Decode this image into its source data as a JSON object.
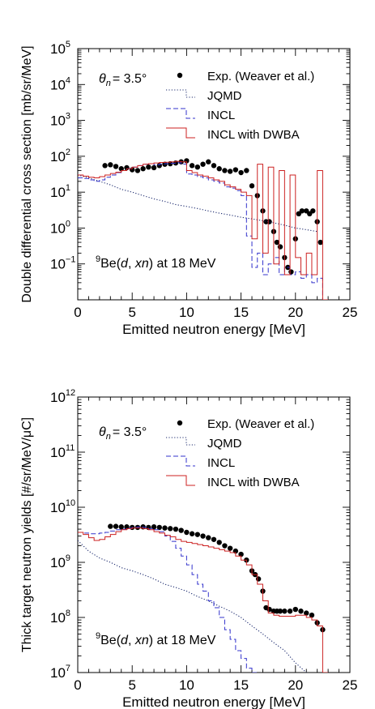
{
  "chart_data": [
    {
      "type": "line",
      "xlabel": "Emitted neutron energy [MeV]",
      "ylabel": "Double differential cross section [mb/sr/MeV]",
      "xlim": [
        0,
        25
      ],
      "ylim": [
        0.01,
        100000
      ],
      "yscale": "log",
      "xticks": [
        "0",
        "5",
        "10",
        "15",
        "20",
        "25"
      ],
      "yticks": [
        {
          "base": "10",
          "exp": "−1"
        },
        {
          "base": "10",
          "exp": "0"
        },
        {
          "base": "10",
          "exp": "1"
        },
        {
          "base": "10",
          "exp": "2"
        },
        {
          "base": "10",
          "exp": "3"
        },
        {
          "base": "10",
          "exp": "4"
        },
        {
          "base": "10",
          "exp": "5"
        }
      ],
      "angle_label": {
        "symbol": "θ",
        "sub": "n",
        "rest": "= 3.5°"
      },
      "reaction_label": {
        "sup": "9",
        "a": "Be(",
        "d": "d",
        "comma": ", ",
        "xn": "xn",
        "rest": ") at 18 MeV"
      },
      "legend_position": "top-right",
      "series": [
        {
          "name": "Exp. (Weaver et al.)",
          "style": "points",
          "color": "#000000",
          "x": [
            2.5,
            3.0,
            3.5,
            4.0,
            4.5,
            5.0,
            5.5,
            6.0,
            6.5,
            7.0,
            7.5,
            8.0,
            8.5,
            9.0,
            9.5,
            10.0,
            10.5,
            11.0,
            11.5,
            12.0,
            12.5,
            13.0,
            13.5,
            14.0,
            14.5,
            15.0,
            15.5,
            16.0,
            16.5,
            17.0,
            17.3,
            17.6,
            18.0,
            18.3,
            18.6,
            19.0,
            19.3,
            19.6,
            20.0,
            20.3,
            20.6,
            21.0,
            21.3,
            21.6,
            22.0,
            22.3
          ],
          "y": [
            55,
            58,
            52,
            45,
            48,
            42,
            40,
            45,
            50,
            48,
            55,
            60,
            62,
            65,
            70,
            75,
            55,
            50,
            60,
            70,
            55,
            45,
            40,
            38,
            42,
            35,
            40,
            15,
            8,
            3,
            1.5,
            1.5,
            0.8,
            0.4,
            0.3,
            0.15,
            0.08,
            0.06,
            0.5,
            2.5,
            3,
            3,
            2.5,
            3,
            1.5,
            0.4
          ]
        },
        {
          "name": "JQMD",
          "style": "dotted",
          "color": "#1c2a6e",
          "x": [
            0,
            1,
            2,
            3,
            4,
            5,
            6,
            7,
            8,
            9,
            10,
            11,
            12,
            13,
            14,
            15,
            16,
            17,
            18,
            19,
            20,
            21,
            22
          ],
          "y": [
            30,
            25,
            20,
            16,
            12,
            10,
            8,
            6.5,
            5.5,
            4.5,
            4,
            3.5,
            3,
            2.6,
            2.3,
            2,
            1.8,
            1.6,
            1.4,
            1.2,
            1.0,
            0.9,
            0.8
          ]
        },
        {
          "name": "INCL",
          "style": "dashed-step",
          "color": "#3333cc",
          "x": [
            0,
            0.5,
            1,
            1.5,
            2,
            2.5,
            3,
            3.5,
            4,
            4.5,
            5,
            5.5,
            6,
            6.5,
            7,
            7.5,
            8,
            8.5,
            9,
            9.5,
            10,
            10.5,
            11,
            11.5,
            12,
            12.5,
            13,
            13.5,
            14,
            14.5,
            15,
            15.5,
            16,
            16.5,
            17,
            17.5,
            18,
            18.5,
            19,
            19.5,
            20,
            20.5,
            21,
            21.5,
            22,
            22.5
          ],
          "y": [
            25,
            24,
            22,
            20,
            22,
            26,
            30,
            35,
            40,
            45,
            50,
            55,
            60,
            62,
            58,
            60,
            62,
            64,
            66,
            60,
            32,
            30,
            27,
            25,
            22,
            20,
            18,
            14,
            13,
            11,
            8,
            0.6,
            0.08,
            0.2,
            0.05,
            0.1,
            0.15,
            0.05,
            0.08,
            0.05,
            0.06,
            0.04,
            0.05,
            0.03,
            0.04,
            0.01
          ]
        },
        {
          "name": "INCL with DWBA",
          "style": "solid-step",
          "color": "#cc2222",
          "x": [
            0,
            0.5,
            1,
            1.5,
            2,
            2.5,
            3,
            3.5,
            4,
            4.5,
            5,
            5.5,
            6,
            6.5,
            7,
            7.5,
            8,
            8.5,
            9,
            9.5,
            10,
            10.5,
            11,
            11.5,
            12,
            12.5,
            13,
            13.5,
            14,
            14.5,
            15,
            15.5,
            16,
            16.5,
            17,
            17.5,
            18,
            18.5,
            19,
            19.5,
            20,
            20.5,
            21,
            21.5,
            22,
            22.5
          ],
          "y": [
            30,
            28,
            26,
            25,
            27,
            30,
            33,
            36,
            40,
            45,
            50,
            55,
            60,
            62,
            65,
            67,
            68,
            70,
            72,
            70,
            40,
            35,
            30,
            28,
            25,
            22,
            20,
            16,
            14,
            12,
            10,
            8,
            0.5,
            60,
            0.2,
            50,
            0.1,
            40,
            0.05,
            30,
            0.15,
            0.05,
            0.2,
            0.05,
            40,
            0.01
          ]
        }
      ]
    },
    {
      "type": "line",
      "xlabel": "Emitted neutron energy [MeV]",
      "ylabel": "Thick target neutron yields [#/sr/MeV/μC]",
      "xlim": [
        0,
        25
      ],
      "ylim": [
        10000000,
        1000000000000
      ],
      "yscale": "log",
      "xticks": [
        "0",
        "5",
        "10",
        "15",
        "20",
        "25"
      ],
      "yticks": [
        {
          "base": "10",
          "exp": "7"
        },
        {
          "base": "10",
          "exp": "8"
        },
        {
          "base": "10",
          "exp": "9"
        },
        {
          "base": "10",
          "exp": "10"
        },
        {
          "base": "10",
          "exp": "11"
        },
        {
          "base": "10",
          "exp": "12"
        }
      ],
      "angle_label": {
        "symbol": "θ",
        "sub": "n",
        "rest": "= 3.5°"
      },
      "reaction_label": {
        "sup": "9",
        "a": "Be(",
        "d": "d",
        "comma": ", ",
        "xn": "xn",
        "rest": ") at 18 MeV"
      },
      "legend_position": "top-right",
      "series": [
        {
          "name": "Exp. (Weaver et al.)",
          "style": "points",
          "color": "#000000",
          "x": [
            3.0,
            3.5,
            4.0,
            4.5,
            5.0,
            5.5,
            6.0,
            6.5,
            7.0,
            7.5,
            8.0,
            8.5,
            9.0,
            9.5,
            10.0,
            10.5,
            11.0,
            11.5,
            12.0,
            12.5,
            13.0,
            13.5,
            14.0,
            14.5,
            15.0,
            15.5,
            16.0,
            16.3,
            16.6,
            17.0,
            17.3,
            17.6,
            18.0,
            18.3,
            18.6,
            19.0,
            19.5,
            20.0,
            20.5,
            21.0,
            21.5,
            22.0,
            22.5
          ],
          "y": [
            4500000000.0,
            4500000000.0,
            4400000000.0,
            4400000000.0,
            4300000000.0,
            4300000000.0,
            4400000000.0,
            4300000000.0,
            4400000000.0,
            4300000000.0,
            4200000000.0,
            4100000000.0,
            4000000000.0,
            3800000000.0,
            3500000000.0,
            3300000000.0,
            3200000000.0,
            3000000000.0,
            2800000000.0,
            2600000000.0,
            2300000000.0,
            2000000000.0,
            1800000000.0,
            1600000000.0,
            1400000000.0,
            1100000000.0,
            700000000.0,
            600000000.0,
            500000000.0,
            300000000.0,
            150000000.0,
            140000000.0,
            130000000.0,
            130000000.0,
            130000000.0,
            130000000.0,
            130000000.0,
            140000000.0,
            130000000.0,
            120000000.0,
            110000000.0,
            80000000.0,
            60000000.0
          ]
        },
        {
          "name": "JQMD",
          "style": "dotted",
          "color": "#1c2a6e",
          "x": [
            0,
            1,
            2,
            3,
            4,
            5,
            6,
            7,
            8,
            9,
            10,
            11,
            12,
            13,
            14,
            15,
            16,
            17,
            18,
            19,
            20,
            21
          ],
          "y": [
            2500000000.0,
            1600000000.0,
            1200000000.0,
            1000000000.0,
            800000000.0,
            700000000.0,
            600000000.0,
            500000000.0,
            400000000.0,
            350000000.0,
            300000000.0,
            240000000.0,
            200000000.0,
            160000000.0,
            130000000.0,
            100000000.0,
            70000000.0,
            50000000.0,
            35000000.0,
            25000000.0,
            15000000.0,
            10000000.0
          ]
        },
        {
          "name": "INCL",
          "style": "dashed-step",
          "color": "#3333cc",
          "x": [
            0,
            0.5,
            1,
            1.5,
            2,
            2.5,
            3,
            3.5,
            4,
            4.5,
            5,
            5.5,
            6,
            6.5,
            7,
            7.5,
            8,
            8.5,
            9,
            9.5,
            10,
            10.5,
            11,
            11.5,
            12,
            12.5,
            13,
            13.5,
            14,
            14.5,
            15,
            15.5,
            16
          ],
          "y": [
            3500000000.0,
            3400000000.0,
            3300000000.0,
            3300000000.0,
            3400000000.0,
            3500000000.0,
            3700000000.0,
            3900000000.0,
            4000000000.0,
            4200000000.0,
            4300000000.0,
            4400000000.0,
            4300000000.0,
            4100000000.0,
            3900000000.0,
            3600000000.0,
            3000000000.0,
            2400000000.0,
            1800000000.0,
            1300000000.0,
            900000000.0,
            600000000.0,
            400000000.0,
            300000000.0,
            200000000.0,
            150000000.0,
            100000000.0,
            60000000.0,
            40000000.0,
            25000000.0,
            18000000.0,
            12000000.0,
            10000000.0
          ]
        },
        {
          "name": "INCL with DWBA",
          "style": "solid-step",
          "color": "#cc2222",
          "x": [
            0,
            0.5,
            1,
            1.5,
            2,
            2.5,
            3,
            3.5,
            4,
            4.5,
            5,
            5.5,
            6,
            6.5,
            7,
            7.5,
            8,
            8.5,
            9,
            9.5,
            10,
            10.5,
            11,
            11.5,
            12,
            12.5,
            13,
            13.5,
            14,
            14.5,
            15,
            15.5,
            16,
            16.5,
            17,
            17.5,
            18,
            18.5,
            19,
            19.5,
            20,
            20.5,
            21,
            21.5,
            22,
            22.5
          ],
          "y": [
            3500000000.0,
            3200000000.0,
            2800000000.0,
            2500000000.0,
            2600000000.0,
            2900000000.0,
            3200000000.0,
            3600000000.0,
            3900000000.0,
            4100000000.0,
            4200000000.0,
            4200000000.0,
            4100000000.0,
            3900000000.0,
            3600000000.0,
            3400000000.0,
            3100000000.0,
            2900000000.0,
            2600000000.0,
            2400000000.0,
            2300000000.0,
            2200000000.0,
            2100000000.0,
            2000000000.0,
            1900000000.0,
            1800000000.0,
            1700000000.0,
            1600000000.0,
            1500000000.0,
            1300000000.0,
            1100000000.0,
            900000000.0,
            600000000.0,
            400000000.0,
            200000000.0,
            120000000.0,
            110000000.0,
            105000000.0,
            105000000.0,
            105000000.0,
            110000000.0,
            110000000.0,
            100000000.0,
            90000000.0,
            70000000.0,
            10000000.0
          ]
        }
      ]
    }
  ]
}
